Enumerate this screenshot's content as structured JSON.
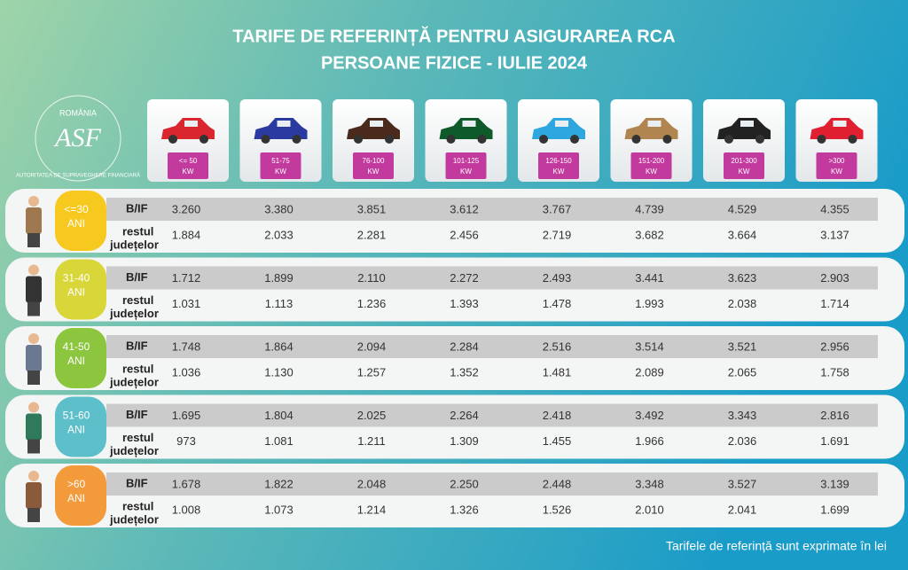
{
  "header": {
    "title": [
      "TARIFE DE REFERINȚĂ PENTRU ASIGURAREA RCA",
      "PERSOANE FIZICE - IULIE 2024"
    ]
  },
  "logo": {
    "country": "ROMÂNIA",
    "initials": "ASF",
    "name": "AUTORITATEA DE SUPRAVEGHERE FINANCIARĂ"
  },
  "columns": [
    {
      "range": "<= 50",
      "unit": "KW"
    },
    {
      "range": "51-75",
      "unit": "KW"
    },
    {
      "range": "76-100",
      "unit": "KW"
    },
    {
      "range": "101-125",
      "unit": "KW"
    },
    {
      "range": "126-150",
      "unit": "KW"
    },
    {
      "range": "151-200",
      "unit": "KW"
    },
    {
      "range": "201-300",
      "unit": "KW"
    },
    {
      "range": ">300",
      "unit": "KW"
    }
  ],
  "rows": [
    {
      "age": [
        "<=30",
        "ANI"
      ],
      "bif_label": "B/IF",
      "rest_label": [
        "restul",
        "județelor"
      ],
      "bif": [
        "3.260",
        "3.380",
        "3.851",
        "3.612",
        "3.767",
        "4.739",
        "4.529",
        "4.355"
      ],
      "rest": [
        "1.884",
        "2.033",
        "2.281",
        "2.456",
        "2.719",
        "3.682",
        "3.664",
        "3.137"
      ]
    },
    {
      "age": [
        "31-40",
        "ANI"
      ],
      "bif_label": "B/IF",
      "rest_label": [
        "restul",
        "județelor"
      ],
      "bif": [
        "1.712",
        "1.899",
        "2.110",
        "2.272",
        "2.493",
        "3.441",
        "3.623",
        "2.903"
      ],
      "rest": [
        "1.031",
        "1.113",
        "1.236",
        "1.393",
        "1.478",
        "1.993",
        "2.038",
        "1.714"
      ]
    },
    {
      "age": [
        "41-50",
        "ANI"
      ],
      "bif_label": "B/IF",
      "rest_label": [
        "restul",
        "județelor"
      ],
      "bif": [
        "1.748",
        "1.864",
        "2.094",
        "2.284",
        "2.516",
        "3.514",
        "3.521",
        "2.956"
      ],
      "rest": [
        "1.036",
        "1.130",
        "1.257",
        "1.352",
        "1.481",
        "2.089",
        "2.065",
        "1.758"
      ]
    },
    {
      "age": [
        "51-60",
        "ANI"
      ],
      "bif_label": "B/IF",
      "rest_label": [
        "restul",
        "județelor"
      ],
      "bif": [
        "1.695",
        "1.804",
        "2.025",
        "2.264",
        "2.418",
        "3.492",
        "3.343",
        "2.816"
      ],
      "rest": [
        "973",
        "1.081",
        "1.211",
        "1.309",
        "1.455",
        "1.966",
        "2.036",
        "1.691"
      ]
    },
    {
      "age": [
        ">60",
        "ANI"
      ],
      "bif_label": "B/IF",
      "rest_label": [
        "restul",
        "județelor"
      ],
      "bif": [
        "1.678",
        "1.822",
        "2.048",
        "2.250",
        "2.448",
        "3.348",
        "3.527",
        "3.139"
      ],
      "rest": [
        "1.008",
        "1.073",
        "1.214",
        "1.326",
        "1.526",
        "2.010",
        "2.041",
        "1.699"
      ]
    }
  ],
  "footer": {
    "note": "Tarifele de referință sunt exprimate în lei"
  }
}
